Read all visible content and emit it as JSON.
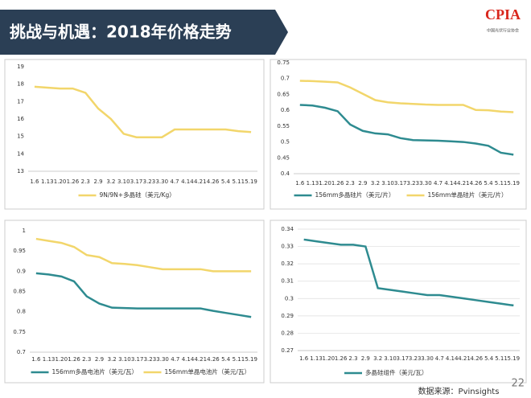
{
  "header": {
    "title": "挑战与机遇：2018年价格走势",
    "logo": "CPIA",
    "logo_sub": "中国光伏行业协会",
    "source": "数据来源：Pvinsights",
    "page": "22"
  },
  "chart_data": [
    {
      "type": "line",
      "categories": [
        "1.6",
        "1.13",
        "1.20",
        "1.26",
        "2.3",
        "2.9",
        "3.2",
        "3.10",
        "3.17",
        "3.23",
        "3.30",
        "4.7",
        "4.14",
        "4.21",
        "4.26",
        "5.4",
        "5.11",
        "5.19"
      ],
      "series": [
        {
          "name": "9N/9N+多晶硅（美元/Kg）",
          "color": "#f2d66b",
          "values": [
            17.85,
            17.8,
            17.75,
            17.75,
            17.5,
            16.6,
            16.0,
            15.15,
            14.95,
            14.95,
            14.95,
            15.4,
            15.4,
            15.4,
            15.4,
            15.4,
            15.3,
            15.25
          ]
        }
      ],
      "ylim": [
        13,
        19
      ],
      "yticks": [
        13,
        14,
        15,
        16,
        17,
        18,
        19
      ],
      "grid": false
    },
    {
      "type": "line",
      "categories": [
        "1.6",
        "1.13",
        "1.20",
        "1.26",
        "2.3",
        "2.9",
        "3.2",
        "3.10",
        "3.17",
        "3.23",
        "3.30",
        "4.7",
        "4.14",
        "4.21",
        "4.26",
        "5.4",
        "5.11",
        "5.19"
      ],
      "series": [
        {
          "name": "156mm多晶硅片（美元/片）",
          "color": "#2e8b90",
          "values": [
            0.617,
            0.615,
            0.608,
            0.597,
            0.555,
            0.535,
            0.527,
            0.524,
            0.512,
            0.506,
            0.505,
            0.504,
            0.502,
            0.5,
            0.495,
            0.488,
            0.466,
            0.46
          ]
        },
        {
          "name": "156mm单晶硅片（美元/片）",
          "color": "#f2d66b",
          "values": [
            0.693,
            0.692,
            0.69,
            0.688,
            0.672,
            0.652,
            0.632,
            0.625,
            0.622,
            0.62,
            0.618,
            0.617,
            0.617,
            0.617,
            0.601,
            0.6,
            0.596,
            0.594
          ]
        }
      ],
      "ylim": [
        0.4,
        0.75
      ],
      "yticks": [
        0.4,
        0.45,
        0.5,
        0.55,
        0.6,
        0.65,
        0.7,
        0.75
      ],
      "grid": false
    },
    {
      "type": "line",
      "categories": [
        "1.6",
        "1.13",
        "1.20",
        "1.26",
        "2.3",
        "2.9",
        "3.2",
        "3.10",
        "3.17",
        "3.23",
        "3.30",
        "4.7",
        "4.14",
        "4.21",
        "4.26",
        "5.4",
        "5.11",
        "5.19"
      ],
      "series": [
        {
          "name": "156mm多晶电池片（美元/瓦）",
          "color": "#2e8b90",
          "values": [
            0.895,
            0.892,
            0.887,
            0.875,
            0.838,
            0.82,
            0.81,
            0.809,
            0.808,
            0.808,
            0.808,
            0.808,
            0.808,
            0.808,
            0.802,
            0.797,
            0.792,
            0.787
          ]
        },
        {
          "name": "156mm单晶电池片（美元/瓦）",
          "color": "#f2d66b",
          "values": [
            0.98,
            0.975,
            0.97,
            0.96,
            0.94,
            0.935,
            0.92,
            0.918,
            0.915,
            0.91,
            0.905,
            0.905,
            0.905,
            0.905,
            0.9,
            0.9,
            0.9,
            0.9
          ]
        }
      ],
      "ylim": [
        0.7,
        1
      ],
      "yticks": [
        0.7,
        0.75,
        0.8,
        0.85,
        0.9,
        0.95,
        1
      ],
      "grid": false
    },
    {
      "type": "line",
      "categories": [
        "1.6",
        "1.13",
        "1.20",
        "1.26",
        "2.3",
        "2.9",
        "3.2",
        "3.10",
        "3.17",
        "3.23",
        "3.30",
        "4.7",
        "4.14",
        "4.21",
        "4.26",
        "5.4",
        "5.11",
        "5.19"
      ],
      "series": [
        {
          "name": "多晶硅组件（美元/瓦）",
          "color": "#2e8b90",
          "values": [
            0.334,
            0.333,
            0.332,
            0.331,
            0.331,
            0.33,
            0.306,
            0.305,
            0.304,
            0.303,
            0.302,
            0.302,
            0.301,
            0.3,
            0.299,
            0.298,
            0.297,
            0.296
          ]
        }
      ],
      "ylim": [
        0.27,
        0.34
      ],
      "yticks": [
        0.27,
        0.28,
        0.29,
        0.3,
        0.31,
        0.32,
        0.33,
        0.34
      ],
      "grid": true
    }
  ]
}
